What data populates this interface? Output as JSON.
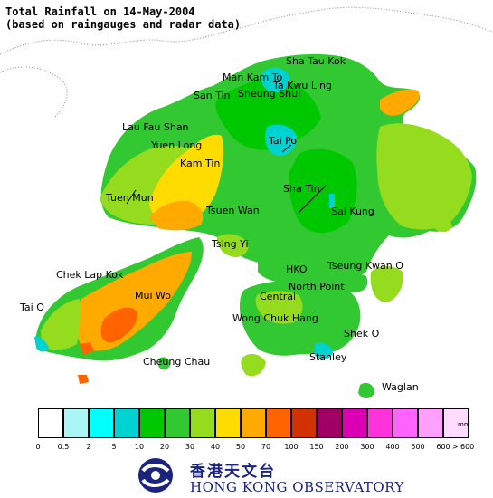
{
  "title": {
    "line1": "Total Rainfall on 14-May-2004",
    "line2": "(based on raingauges and radar data)"
  },
  "places": [
    {
      "key": "sha-tau-kok",
      "label": "Sha Tau Kok"
    },
    {
      "key": "man-kam-to",
      "label": "Man Kam To"
    },
    {
      "key": "ta-kwu-ling",
      "label": "Ta Kwu Ling"
    },
    {
      "key": "san-tin",
      "label": "San Tin"
    },
    {
      "key": "sheung-shui",
      "label": "Sheung Shui"
    },
    {
      "key": "lau-fau-shan",
      "label": "Lau Fau Shan"
    },
    {
      "key": "yuen-long",
      "label": "Yuen Long"
    },
    {
      "key": "tai-po",
      "label": "Tai Po"
    },
    {
      "key": "kam-tin",
      "label": "Kam Tin"
    },
    {
      "key": "sha-tin",
      "label": "Sha Tin"
    },
    {
      "key": "tuen-mun",
      "label": "Tuen Mun"
    },
    {
      "key": "sai-kung",
      "label": "Sai Kung"
    },
    {
      "key": "tsuen-wan",
      "label": "Tsuen Wan"
    },
    {
      "key": "tsing-yi",
      "label": "Tsing Yi"
    },
    {
      "key": "chek-lap-kok",
      "label": "Chek Lap Kok"
    },
    {
      "key": "hko",
      "label": "HKO"
    },
    {
      "key": "tseung-kwan-o",
      "label": "Tseung Kwan O"
    },
    {
      "key": "mui-wo",
      "label": "Mui Wo"
    },
    {
      "key": "north-point",
      "label": "North Point"
    },
    {
      "key": "central",
      "label": "Central"
    },
    {
      "key": "tai-o",
      "label": "Tai O"
    },
    {
      "key": "wong-chuk-hang",
      "label": "Wong Chuk Hang"
    },
    {
      "key": "shek-o",
      "label": "Shek O"
    },
    {
      "key": "cheung-chau",
      "label": "Cheung Chau"
    },
    {
      "key": "stanley",
      "label": "Stanley"
    },
    {
      "key": "waglan",
      "label": "Waglan"
    }
  ],
  "legend": {
    "unit": "mm",
    "colors": [
      "#ffffff",
      "#aaf5f5",
      "#00ffff",
      "#00d2d2",
      "#00c800",
      "#32c832",
      "#96dc1e",
      "#ffdc00",
      "#ffaa00",
      "#ff6400",
      "#d23200",
      "#a00064",
      "#dc00b4",
      "#ff32dc",
      "#ff64ff",
      "#ffa0ff",
      "#ffdcff"
    ],
    "ticks": [
      "0",
      "0.5",
      "2",
      "5",
      "10",
      "20",
      "30",
      "40",
      "50",
      "70",
      "100",
      "150",
      "200",
      "300",
      "400",
      "500",
      "600",
      "> 600"
    ]
  },
  "logo": {
    "chinese": "香港天文台",
    "english": "HONG KONG OBSERVATORY"
  }
}
